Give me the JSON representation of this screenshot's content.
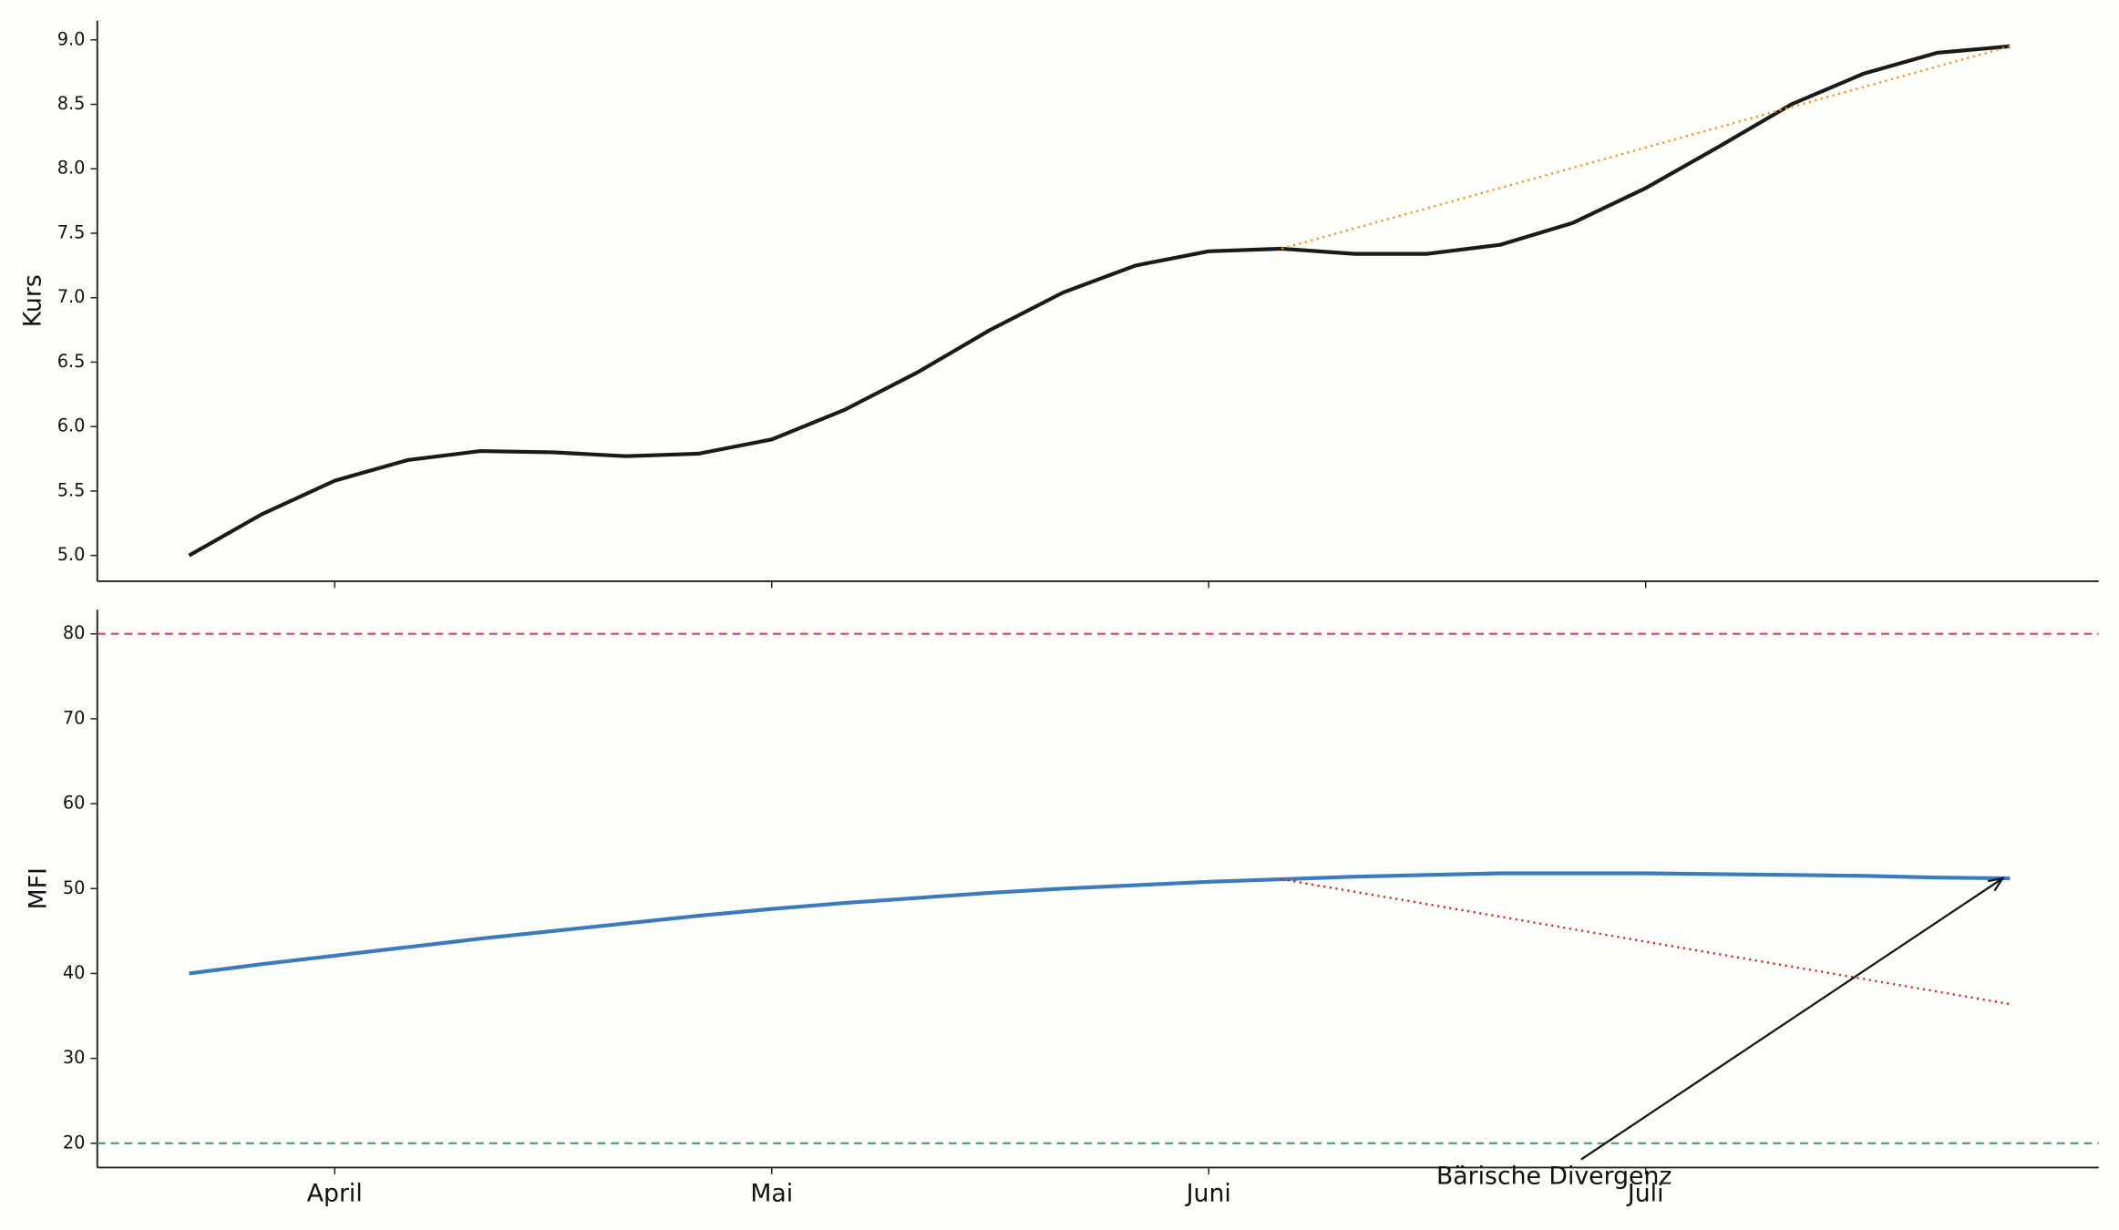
{
  "chart_data": [
    {
      "type": "line",
      "ylabel": "Kurs",
      "x": [
        0,
        1,
        2,
        3,
        4,
        5,
        6,
        7,
        8,
        9,
        10,
        11,
        12,
        13,
        14,
        15,
        16,
        17,
        18,
        19,
        20,
        21,
        22,
        23,
        24,
        25
      ],
      "series": [
        {
          "color": "#1a1a1a",
          "values": [
            5.0,
            5.32,
            5.58,
            5.74,
            5.81,
            5.8,
            5.77,
            5.79,
            5.9,
            6.13,
            6.42,
            6.75,
            7.04,
            7.25,
            7.36,
            7.38,
            7.34,
            7.34,
            7.41,
            7.58,
            7.85,
            8.17,
            8.5,
            8.74,
            8.9,
            8.95
          ]
        }
      ],
      "trendline": {
        "x": [
          15,
          25
        ],
        "y": [
          7.38,
          8.95
        ],
        "color": "#ff8c1a"
      },
      "xlim": [
        -1.26,
        26.22
      ],
      "ylim": [
        4.8,
        9.15
      ],
      "yticks": [
        {
          "value": 5,
          "label": "5.0"
        },
        5.5,
        {
          "value": 6,
          "label": "6.0"
        },
        6.5,
        {
          "value": 7,
          "label": "7.0"
        },
        7.5,
        {
          "value": 8,
          "label": "8.0"
        },
        8.5,
        {
          "value": 9,
          "label": "9.0"
        }
      ]
    },
    {
      "type": "line",
      "ylabel": "MFI",
      "x": [
        0,
        1,
        2,
        3,
        4,
        5,
        6,
        7,
        8,
        9,
        10,
        11,
        12,
        13,
        14,
        15,
        16,
        17,
        18,
        19,
        20,
        21,
        22,
        23,
        24,
        25
      ],
      "series": [
        {
          "color": "#3a7bbf",
          "values": [
            40.0,
            41.1,
            42.1,
            43.1,
            44.1,
            45.0,
            45.9,
            46.8,
            47.6,
            48.3,
            48.9,
            49.5,
            50.0,
            50.4,
            50.8,
            51.1,
            51.4,
            51.6,
            51.8,
            51.8,
            51.8,
            51.7,
            51.6,
            51.5,
            51.3,
            51.2
          ]
        }
      ],
      "hlines": [
        {
          "y": 80,
          "color": "#e0405a"
        },
        {
          "y": 20,
          "color": "#3aa17e"
        }
      ],
      "trendline": {
        "x": [
          15,
          25
        ],
        "y": [
          51.1,
          36.4
        ],
        "color": "#d62728"
      },
      "annotation": {
        "text": "Bärische Divergenz",
        "x": 24.9,
        "y": 51.2
      },
      "xlim": [
        -1.26,
        26.22
      ],
      "ylim": [
        17.14,
        82.86
      ],
      "xticks": [
        {
          "value": 2,
          "label": "April"
        },
        {
          "value": 8,
          "label": "Mai"
        },
        {
          "value": 14,
          "label": "Juni"
        },
        {
          "value": 20,
          "label": "Juli"
        }
      ],
      "yticks": [
        20,
        30,
        40,
        50,
        60,
        70,
        80
      ]
    }
  ]
}
